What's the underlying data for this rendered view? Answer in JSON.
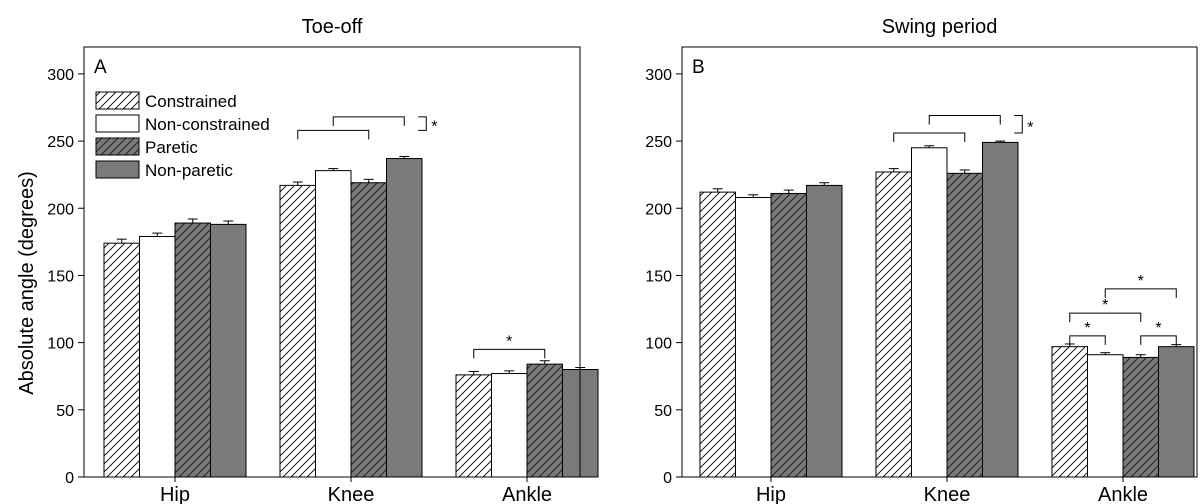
{
  "figure": {
    "ylabel": "Absolute angle (degrees)",
    "legend": [
      "Constrained",
      "Non-constrained",
      "Paretic",
      "Non-paretic"
    ]
  },
  "chart_data": [
    {
      "type": "bar",
      "title": "Toe-off",
      "panel_label": "A",
      "xlabel": "",
      "ylabel": "Absolute angle (degrees)",
      "ylim": [
        0,
        320
      ],
      "yticks": [
        0,
        50,
        100,
        150,
        200,
        250,
        300
      ],
      "categories": [
        "Hip",
        "Knee",
        "Ankle"
      ],
      "series": [
        {
          "name": "Constrained",
          "values": [
            174,
            217,
            76
          ],
          "errors": [
            3,
            2.5,
            2.5
          ],
          "fill": "hatch-white"
        },
        {
          "name": "Non-constrained",
          "values": [
            179,
            228,
            77
          ],
          "errors": [
            2.5,
            1.5,
            2
          ],
          "fill": "white"
        },
        {
          "name": "Paretic",
          "values": [
            189,
            219,
            84
          ],
          "errors": [
            3,
            2.5,
            2.5
          ],
          "fill": "hatch-gray"
        },
        {
          "name": "Non-paretic",
          "values": [
            188,
            237,
            80
          ],
          "errors": [
            2.5,
            1.5,
            1.5
          ],
          "fill": "gray"
        }
      ],
      "significance": [
        {
          "category": 1,
          "from": 0,
          "to": 2,
          "level": 258,
          "label": ""
        },
        {
          "category": 1,
          "from": 1,
          "to": 3,
          "level": 268,
          "label": ""
        },
        {
          "category": 1,
          "bracket": "right",
          "low": 258,
          "high": 268,
          "label": "*"
        },
        {
          "category": 2,
          "from": 0,
          "to": 2,
          "level": 95,
          "label": "*"
        }
      ],
      "legend_position": "top-left"
    },
    {
      "type": "bar",
      "title": "Swing period",
      "panel_label": "B",
      "xlabel": "",
      "ylabel": "",
      "ylim": [
        0,
        320
      ],
      "yticks": [
        0,
        50,
        100,
        150,
        200,
        250,
        300
      ],
      "categories": [
        "Hip",
        "Knee",
        "Ankle"
      ],
      "series": [
        {
          "name": "Constrained",
          "values": [
            212,
            227,
            97
          ],
          "errors": [
            2.5,
            2.5,
            2
          ],
          "fill": "hatch-white"
        },
        {
          "name": "Non-constrained",
          "values": [
            208,
            245,
            91
          ],
          "errors": [
            2,
            1.5,
            1.5
          ],
          "fill": "white"
        },
        {
          "name": "Paretic",
          "values": [
            211,
            226,
            89
          ],
          "errors": [
            2.5,
            2.5,
            2
          ],
          "fill": "hatch-gray"
        },
        {
          "name": "Non-paretic",
          "values": [
            217,
            249,
            97
          ],
          "errors": [
            2,
            1,
            1.5
          ],
          "fill": "gray"
        }
      ],
      "significance": [
        {
          "category": 1,
          "from": 0,
          "to": 2,
          "level": 256,
          "label": ""
        },
        {
          "category": 1,
          "from": 1,
          "to": 3,
          "level": 269,
          "label": ""
        },
        {
          "category": 1,
          "bracket": "right",
          "low": 256,
          "high": 269,
          "label": "*"
        },
        {
          "category": 2,
          "from": 0,
          "to": 1,
          "level": 105,
          "label": "*"
        },
        {
          "category": 2,
          "from": 0,
          "to": 2,
          "level": 122,
          "label": "*"
        },
        {
          "category": 2,
          "from": 2,
          "to": 3,
          "level": 105,
          "label": "*"
        },
        {
          "category": 2,
          "from": 1,
          "to": 3,
          "level": 140,
          "label": "*"
        }
      ]
    }
  ]
}
